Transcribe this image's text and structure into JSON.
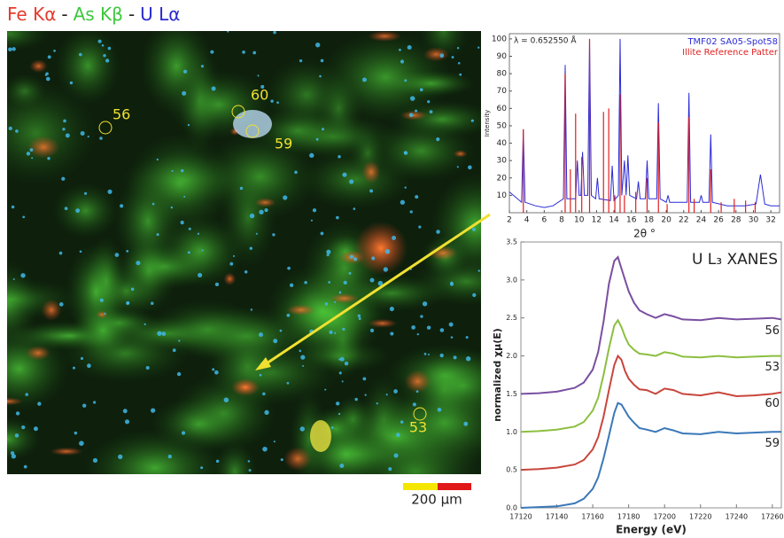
{
  "image": {
    "title_parts": [
      {
        "text": "Fe Kα",
        "color": "#e53a2e"
      },
      {
        "text": "-",
        "color": "#222222"
      },
      {
        "text": "As Kβ",
        "color": "#3cc83c"
      },
      {
        "text": "-",
        "color": "#222222"
      },
      {
        "text": "U Lα",
        "color": "#2a2ad0"
      }
    ],
    "spot_labels": [
      "56",
      "60",
      "59",
      "53"
    ],
    "scale_bar": "200 µm"
  },
  "chart_data": [
    {
      "type": "line",
      "annotation": "λ = 0.652550 Å",
      "x_label": "2θ °",
      "y_label": "Intensity",
      "xlim": [
        2,
        33
      ],
      "ylim": [
        0,
        103
      ],
      "xticks": [
        2,
        4,
        6,
        8,
        10,
        12,
        14,
        16,
        18,
        20,
        22,
        24,
        26,
        28,
        30,
        32
      ],
      "yticks": [
        10,
        20,
        30,
        40,
        50,
        60,
        70,
        80,
        90,
        100
      ],
      "legend": "top-right",
      "series": [
        {
          "name": "TMF02 SA05-Spot58",
          "color": "#2b2bd6",
          "style": "line",
          "x": [
            2,
            3.4,
            3.6,
            3.8,
            5,
            6,
            7,
            8.2,
            8.4,
            8.6,
            9.6,
            9.8,
            10.0,
            10.2,
            10.4,
            10.6,
            11.0,
            11.2,
            11.4,
            11.9,
            12.1,
            12.3,
            13.6,
            13.8,
            14.0,
            14.5,
            14.7,
            14.9,
            15.2,
            15.4,
            15.6,
            15.8,
            16.6,
            16.8,
            17.0,
            17.6,
            17.8,
            18.0,
            18.9,
            19.1,
            19.3,
            20.0,
            20.2,
            20.4,
            22.4,
            22.6,
            22.8,
            23.8,
            24.0,
            24.2,
            24.9,
            25.1,
            25.3,
            27,
            29,
            30.3,
            30.8,
            31.3,
            32,
            33
          ],
          "values": [
            12,
            6,
            48,
            6,
            4,
            3,
            4,
            8,
            85,
            8,
            8,
            30,
            10,
            10,
            35,
            10,
            10,
            100,
            10,
            8,
            20,
            8,
            7,
            27,
            7,
            10,
            100,
            10,
            30,
            10,
            33,
            10,
            8,
            18,
            8,
            8,
            30,
            8,
            8,
            63,
            8,
            6,
            10,
            6,
            6,
            69,
            6,
            6,
            10,
            6,
            6,
            45,
            6,
            4,
            4,
            5,
            22,
            5,
            4,
            4
          ]
        },
        {
          "name": "Illite Reference Patter",
          "color": "#e02020",
          "style": "stick",
          "x": [
            3.6,
            8.4,
            9.0,
            9.6,
            10.3,
            11.2,
            12.8,
            13.4,
            14.1,
            14.7,
            15.2,
            16.5,
            17.8,
            19.1,
            20.1,
            22.6,
            23.2,
            25.1,
            26.3,
            27.8,
            29.1,
            30.2
          ],
          "values": [
            48,
            80,
            25,
            57,
            32,
            100,
            58,
            60,
            10,
            68,
            10,
            12,
            20,
            52,
            5,
            55,
            8,
            25,
            6,
            8,
            7,
            6
          ]
        }
      ]
    },
    {
      "type": "line",
      "title": "U L₃ XANES",
      "x_label": "Energy (eV)",
      "y_label": "normalized χμ(E)",
      "xlim": [
        17120,
        17265
      ],
      "ylim": [
        0,
        3.5
      ],
      "xticks": [
        17120,
        17140,
        17160,
        17180,
        17200,
        17220,
        17240,
        17260
      ],
      "yticks": [
        {
          "value": 0,
          "label": "0.0"
        },
        0.5,
        {
          "value": 1,
          "label": "1.0"
        },
        1.5,
        {
          "value": 2,
          "label": "2.0"
        },
        2.5,
        {
          "value": 3,
          "label": "3.0"
        },
        3.5
      ],
      "x": [
        17120,
        17130,
        17140,
        17150,
        17155,
        17160,
        17163,
        17166,
        17169,
        17172,
        17174,
        17176,
        17178,
        17180,
        17183,
        17186,
        17190,
        17195,
        17200,
        17205,
        17210,
        17220,
        17230,
        17240,
        17250,
        17260,
        17265
      ],
      "series": [
        {
          "name": "56",
          "color": "#7a4fa0",
          "values": [
            1.5,
            1.51,
            1.53,
            1.58,
            1.65,
            1.82,
            2.05,
            2.45,
            2.95,
            3.25,
            3.3,
            3.15,
            3.0,
            2.85,
            2.7,
            2.6,
            2.55,
            2.5,
            2.55,
            2.52,
            2.48,
            2.47,
            2.5,
            2.48,
            2.49,
            2.5,
            2.48
          ]
        },
        {
          "name": "53",
          "color": "#8cbf3f",
          "values": [
            1.0,
            1.01,
            1.03,
            1.07,
            1.13,
            1.28,
            1.45,
            1.75,
            2.1,
            2.4,
            2.47,
            2.38,
            2.25,
            2.15,
            2.08,
            2.03,
            2.02,
            2.0,
            2.05,
            2.03,
            1.99,
            1.98,
            2.0,
            1.98,
            1.99,
            2.0,
            2.0
          ]
        },
        {
          "name": "60",
          "color": "#c8463c",
          "values": [
            0.5,
            0.51,
            0.53,
            0.57,
            0.63,
            0.77,
            0.93,
            1.2,
            1.55,
            1.88,
            2.0,
            1.95,
            1.8,
            1.7,
            1.62,
            1.56,
            1.55,
            1.5,
            1.57,
            1.55,
            1.5,
            1.48,
            1.52,
            1.47,
            1.48,
            1.5,
            1.52
          ]
        },
        {
          "name": "59",
          "color": "#3a78b8",
          "values": [
            0,
            0.01,
            0.02,
            0.06,
            0.12,
            0.25,
            0.4,
            0.65,
            0.95,
            1.25,
            1.38,
            1.36,
            1.28,
            1.2,
            1.12,
            1.05,
            1.03,
            1.0,
            1.05,
            1.02,
            0.98,
            0.97,
            1.0,
            0.98,
            0.99,
            1.0,
            1.0
          ]
        }
      ]
    }
  ]
}
